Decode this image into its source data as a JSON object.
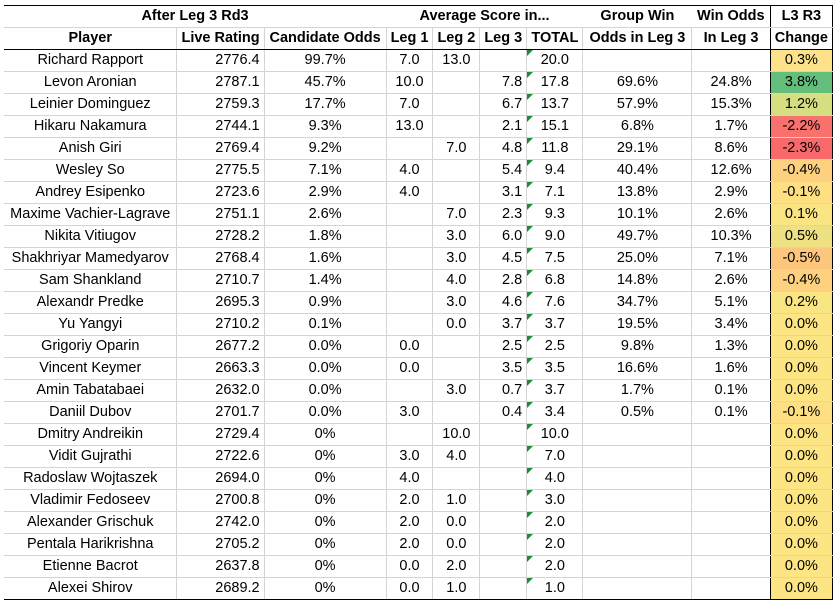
{
  "header": {
    "title": "After Leg 3 Rd3",
    "avg_group": "Average Score in...",
    "group_win_1": "Group Win",
    "group_win_2": "Odds in Leg 3",
    "win_odds_1": "Win Odds",
    "win_odds_2": "In Leg 3",
    "change_1": "L3 R3",
    "change_2": "Change",
    "columns": [
      "Player",
      "Live Rating",
      "Candidate Odds",
      "Leg 1",
      "Leg 2",
      "Leg 3",
      "TOTAL"
    ]
  },
  "rows": [
    {
      "player": "Richard Rapport",
      "rating": "2776.4",
      "cand": "99.7%",
      "leg1": "7.0",
      "leg2": "13.0",
      "leg3": "",
      "total": "20.0",
      "group": "",
      "win": "",
      "change": "0.3%",
      "color": "#fde28a"
    },
    {
      "player": "Levon Aronian",
      "rating": "2787.1",
      "cand": "45.7%",
      "leg1": "10.0",
      "leg2": "",
      "leg3": "7.8",
      "total": "17.8",
      "group": "69.6%",
      "win": "24.8%",
      "change": "3.8%",
      "color": "#63be7b"
    },
    {
      "player": "Leinier Dominguez",
      "rating": "2759.3",
      "cand": "17.7%",
      "leg1": "7.0",
      "leg2": "",
      "leg3": "6.7",
      "total": "13.7",
      "group": "57.9%",
      "win": "15.3%",
      "change": "1.2%",
      "color": "#d5df82"
    },
    {
      "player": "Hikaru Nakamura",
      "rating": "2744.1",
      "cand": "9.3%",
      "leg1": "13.0",
      "leg2": "",
      "leg3": "2.1",
      "total": "15.1",
      "group": "6.8%",
      "win": "1.7%",
      "change": "-2.2%",
      "color": "#f8716c"
    },
    {
      "player": "Anish Giri",
      "rating": "2769.4",
      "cand": "9.2%",
      "leg1": "",
      "leg2": "7.0",
      "leg3": "4.8",
      "total": "11.8",
      "group": "29.1%",
      "win": "8.6%",
      "change": "-2.3%",
      "color": "#f8696b"
    },
    {
      "player": "Wesley So",
      "rating": "2775.5",
      "cand": "7.1%",
      "leg1": "4.0",
      "leg2": "",
      "leg3": "5.4",
      "total": "9.4",
      "group": "40.4%",
      "win": "12.6%",
      "change": "-0.4%",
      "color": "#fed180"
    },
    {
      "player": "Andrey Esipenko",
      "rating": "2723.6",
      "cand": "2.9%",
      "leg1": "4.0",
      "leg2": "",
      "leg3": "3.1",
      "total": "7.1",
      "group": "13.8%",
      "win": "2.9%",
      "change": "-0.1%",
      "color": "#fee083"
    },
    {
      "player": "Maxime Vachier-Lagrave",
      "rating": "2751.1",
      "cand": "2.6%",
      "leg1": "",
      "leg2": "7.0",
      "leg3": "2.3",
      "total": "9.3",
      "group": "10.1%",
      "win": "2.6%",
      "change": "0.1%",
      "color": "#fbe583"
    },
    {
      "player": "Nikita Vitiugov",
      "rating": "2728.2",
      "cand": "1.8%",
      "leg1": "",
      "leg2": "3.0",
      "leg3": "6.0",
      "total": "9.0",
      "group": "49.7%",
      "win": "10.3%",
      "change": "0.5%",
      "color": "#ede182"
    },
    {
      "player": "Shakhriyar Mamedyarov",
      "rating": "2768.4",
      "cand": "1.6%",
      "leg1": "",
      "leg2": "3.0",
      "leg3": "4.5",
      "total": "7.5",
      "group": "25.0%",
      "win": "7.1%",
      "change": "-0.5%",
      "color": "#fdc67d"
    },
    {
      "player": "Sam Shankland",
      "rating": "2710.7",
      "cand": "1.4%",
      "leg1": "",
      "leg2": "4.0",
      "leg3": "2.8",
      "total": "6.8",
      "group": "14.8%",
      "win": "2.6%",
      "change": "-0.4%",
      "color": "#fdd17f"
    },
    {
      "player": "Alexandr Predke",
      "rating": "2695.3",
      "cand": "0.9%",
      "leg1": "",
      "leg2": "3.0",
      "leg3": "4.6",
      "total": "7.6",
      "group": "34.7%",
      "win": "5.1%",
      "change": "0.2%",
      "color": "#fae583"
    },
    {
      "player": "Yu Yangyi",
      "rating": "2710.2",
      "cand": "0.1%",
      "leg1": "",
      "leg2": "0.0",
      "leg3": "3.7",
      "total": "3.7",
      "group": "19.5%",
      "win": "3.4%",
      "change": "0.0%",
      "color": "#fee583"
    },
    {
      "player": "Grigoriy Oparin",
      "rating": "2677.2",
      "cand": "0.0%",
      "leg1": "0.0",
      "leg2": "",
      "leg3": "2.5",
      "total": "2.5",
      "group": "9.8%",
      "win": "1.3%",
      "change": "0.0%",
      "color": "#fee583"
    },
    {
      "player": "Vincent Keymer",
      "rating": "2663.3",
      "cand": "0.0%",
      "leg1": "0.0",
      "leg2": "",
      "leg3": "3.5",
      "total": "3.5",
      "group": "16.6%",
      "win": "1.6%",
      "change": "0.0%",
      "color": "#fee583"
    },
    {
      "player": "Amin Tabatabaei",
      "rating": "2632.0",
      "cand": "0.0%",
      "leg1": "",
      "leg2": "3.0",
      "leg3": "0.7",
      "total": "3.7",
      "group": "1.7%",
      "win": "0.1%",
      "change": "0.0%",
      "color": "#fee583"
    },
    {
      "player": "Daniil Dubov",
      "rating": "2701.7",
      "cand": "0.0%",
      "leg1": "3.0",
      "leg2": "",
      "leg3": "0.4",
      "total": "3.4",
      "group": "0.5%",
      "win": "0.1%",
      "change": "-0.1%",
      "color": "#fedf82"
    },
    {
      "player": "Dmitry Andreikin",
      "rating": "2729.4",
      "cand": "0%",
      "leg1": "",
      "leg2": "10.0",
      "leg3": "",
      "total": "10.0",
      "group": "",
      "win": "",
      "change": "0.0%",
      "color": "#fee583"
    },
    {
      "player": "Vidit Gujrathi",
      "rating": "2722.6",
      "cand": "0%",
      "leg1": "3.0",
      "leg2": "4.0",
      "leg3": "",
      "total": "7.0",
      "group": "",
      "win": "",
      "change": "0.0%",
      "color": "#fee583"
    },
    {
      "player": "Radoslaw Wojtaszek",
      "rating": "2694.0",
      "cand": "0%",
      "leg1": "4.0",
      "leg2": "",
      "leg3": "",
      "total": "4.0",
      "group": "",
      "win": "",
      "change": "0.0%",
      "color": "#fee583"
    },
    {
      "player": "Vladimir Fedoseev",
      "rating": "2700.8",
      "cand": "0%",
      "leg1": "2.0",
      "leg2": "1.0",
      "leg3": "",
      "total": "3.0",
      "group": "",
      "win": "",
      "change": "0.0%",
      "color": "#fee583"
    },
    {
      "player": "Alexander Grischuk",
      "rating": "2742.0",
      "cand": "0%",
      "leg1": "2.0",
      "leg2": "0.0",
      "leg3": "",
      "total": "2.0",
      "group": "",
      "win": "",
      "change": "0.0%",
      "color": "#fee583"
    },
    {
      "player": "Pentala Harikrishna",
      "rating": "2705.2",
      "cand": "0%",
      "leg1": "2.0",
      "leg2": "0.0",
      "leg3": "",
      "total": "2.0",
      "group": "",
      "win": "",
      "change": "0.0%",
      "color": "#fee583"
    },
    {
      "player": "Etienne Bacrot",
      "rating": "2637.8",
      "cand": "0%",
      "leg1": "0.0",
      "leg2": "2.0",
      "leg3": "",
      "total": "2.0",
      "group": "",
      "win": "",
      "change": "0.0%",
      "color": "#fee583"
    },
    {
      "player": "Alexei Shirov",
      "rating": "2689.2",
      "cand": "0%",
      "leg1": "0.0",
      "leg2": "1.0",
      "leg3": "",
      "total": "1.0",
      "group": "",
      "win": "",
      "change": "0.0%",
      "color": "#fee583"
    }
  ]
}
